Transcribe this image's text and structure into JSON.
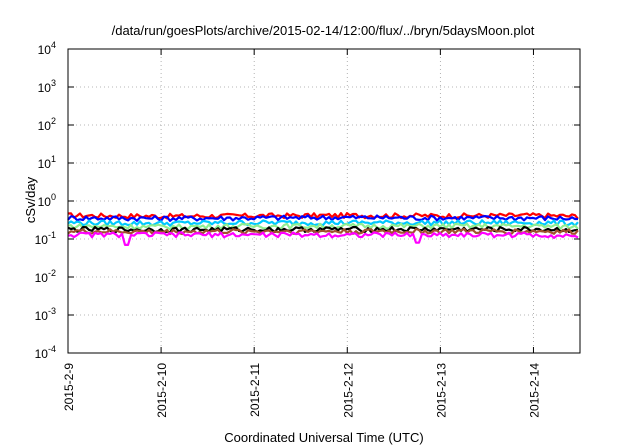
{
  "chart_data": {
    "type": "line",
    "title": "/data/run/goesPlots/archive/2015-02-14/12:00/flux/../bryn/5daysMoon.plot",
    "xlabel": "Coordinated Universal Time (UTC)",
    "ylabel": "cSv/day",
    "yscale": "log",
    "ylim": [
      0.0001,
      10000
    ],
    "xlim": [
      "2015-02-09 00:00",
      "2015-02-14 12:00"
    ],
    "grid": true,
    "legend": "none",
    "y_ticks": [
      {
        "base": "10",
        "exp": "4"
      },
      {
        "base": "10",
        "exp": "3"
      },
      {
        "base": "10",
        "exp": "2"
      },
      {
        "base": "10",
        "exp": "1"
      },
      {
        "base": "10",
        "exp": "0"
      },
      {
        "base": "10",
        "exp": "-1"
      },
      {
        "base": "10",
        "exp": "-2"
      },
      {
        "base": "10",
        "exp": "-3"
      },
      {
        "base": "10",
        "exp": "-4"
      }
    ],
    "x_ticks": [
      "2015-2-9",
      "2015-2-10",
      "2015-2-11",
      "2015-2-12",
      "2015-2-13",
      "2015-2-14"
    ],
    "series": [
      {
        "color": "#ff0000",
        "x": [
          "2015-02-09 00:00",
          "2015-02-10 00:00",
          "2015-02-11 00:00",
          "2015-02-12 00:00",
          "2015-02-13 00:00",
          "2015-02-14 00:00",
          "2015-02-14 12:00"
        ],
        "values": [
          0.42,
          0.4,
          0.41,
          0.42,
          0.41,
          0.42,
          0.4
        ]
      },
      {
        "color": "#0000ff",
        "x": [
          "2015-02-09 00:00",
          "2015-02-10 00:00",
          "2015-02-11 00:00",
          "2015-02-12 00:00",
          "2015-02-13 00:00",
          "2015-02-14 00:00",
          "2015-02-14 12:00"
        ],
        "values": [
          0.36,
          0.35,
          0.36,
          0.37,
          0.36,
          0.36,
          0.35
        ]
      },
      {
        "color": "#00c8ff",
        "x": [
          "2015-02-09 00:00",
          "2015-02-10 00:00",
          "2015-02-11 00:00",
          "2015-02-12 00:00",
          "2015-02-13 00:00",
          "2015-02-14 00:00",
          "2015-02-14 12:00"
        ],
        "values": [
          0.27,
          0.26,
          0.27,
          0.27,
          0.27,
          0.27,
          0.26
        ]
      },
      {
        "color": "#90ee90",
        "x": [
          "2015-02-09 00:00",
          "2015-02-10 00:00",
          "2015-02-11 00:00",
          "2015-02-12 00:00",
          "2015-02-13 00:00",
          "2015-02-14 00:00",
          "2015-02-14 12:00"
        ],
        "values": [
          0.22,
          0.21,
          0.22,
          0.22,
          0.22,
          0.22,
          0.21
        ]
      },
      {
        "color": "#000000",
        "x": [
          "2015-02-09 00:00",
          "2015-02-10 00:00",
          "2015-02-11 00:00",
          "2015-02-12 00:00",
          "2015-02-13 00:00",
          "2015-02-14 00:00",
          "2015-02-14 12:00"
        ],
        "values": [
          0.18,
          0.175,
          0.18,
          0.18,
          0.18,
          0.18,
          0.175
        ]
      },
      {
        "color": "#a0522d",
        "x": [
          "2015-02-09 00:00",
          "2015-02-10 00:00",
          "2015-02-11 00:00",
          "2015-02-12 00:00",
          "2015-02-13 00:00",
          "2015-02-14 00:00",
          "2015-02-14 12:00"
        ],
        "values": [
          0.16,
          0.155,
          0.16,
          0.16,
          0.16,
          0.16,
          0.155
        ]
      },
      {
        "color": "#ff00ff",
        "x": [
          "2015-02-09 00:00",
          "2015-02-09 15:00",
          "2015-02-10 00:00",
          "2015-02-11 00:00",
          "2015-02-12 00:00",
          "2015-02-12 18:00",
          "2015-02-13 00:00",
          "2015-02-14 00:00",
          "2015-02-14 12:00"
        ],
        "values": [
          0.13,
          0.07,
          0.13,
          0.13,
          0.13,
          0.08,
          0.13,
          0.13,
          0.12
        ]
      }
    ]
  }
}
